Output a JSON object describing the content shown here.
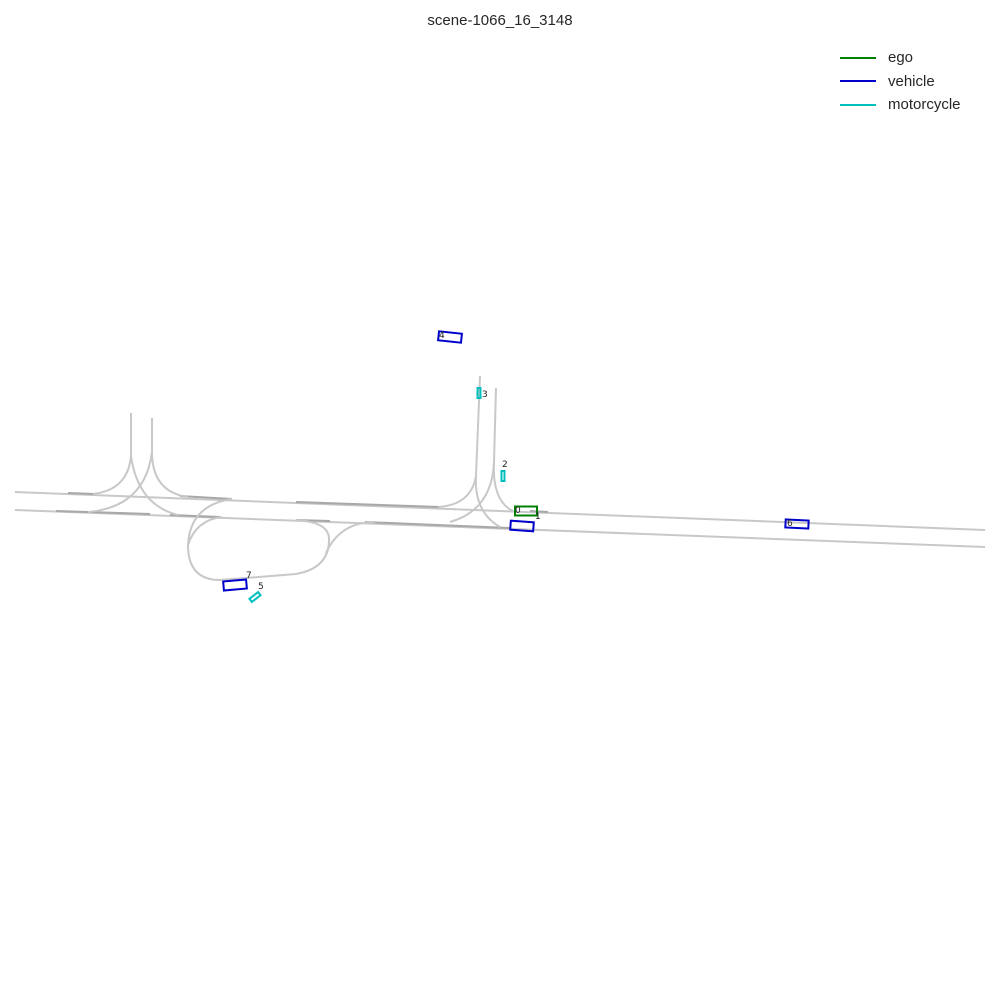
{
  "title": "scene-1066_16_3148",
  "legend": [
    {
      "label": "ego",
      "color": "#008000"
    },
    {
      "label": "vehicle",
      "color": "#0000cc"
    },
    {
      "label": "motorcycle",
      "color": "#00bfbf"
    }
  ],
  "agents": [
    {
      "id": "0",
      "type": "ego"
    },
    {
      "id": "1",
      "type": "vehicle"
    },
    {
      "id": "2",
      "type": "motorcycle"
    },
    {
      "id": "3",
      "type": "motorcycle"
    },
    {
      "id": "4",
      "type": "vehicle"
    },
    {
      "id": "5",
      "type": "motorcycle"
    },
    {
      "id": "6",
      "type": "vehicle"
    },
    {
      "id": "7",
      "type": "vehicle"
    }
  ],
  "colors": {
    "lane": "#c8c8c8",
    "lane_highlight": "#a8a8a8"
  }
}
